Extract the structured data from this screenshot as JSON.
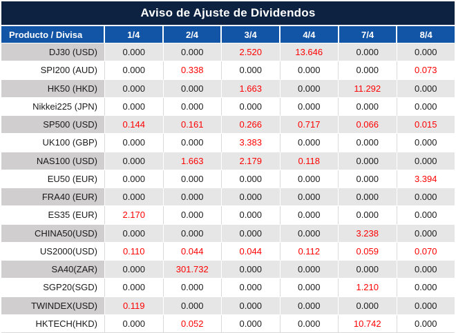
{
  "title": "Aviso de Ajuste de Dividendos",
  "columns": [
    "Producto / Divisa",
    "1/4",
    "2/4",
    "3/4",
    "4/4",
    "7/4",
    "8/4"
  ],
  "rows": [
    {
      "product": "DJ30 (USD)",
      "values": [
        "0.000",
        "0.000",
        "2.520",
        "13.646",
        "0.000",
        "0.000"
      ]
    },
    {
      "product": "SPI200 (AUD)",
      "values": [
        "0.000",
        "0.338",
        "0.000",
        "0.000",
        "0.000",
        "0.073"
      ]
    },
    {
      "product": "HK50 (HKD)",
      "values": [
        "0.000",
        "0.000",
        "1.663",
        "0.000",
        "11.292",
        "0.000"
      ]
    },
    {
      "product": "Nikkei225 (JPN)",
      "values": [
        "0.000",
        "0.000",
        "0.000",
        "0.000",
        "0.000",
        "0.000"
      ]
    },
    {
      "product": "SP500 (USD)",
      "values": [
        "0.144",
        "0.161",
        "0.266",
        "0.717",
        "0.066",
        "0.015"
      ]
    },
    {
      "product": "UK100 (GBP)",
      "values": [
        "0.000",
        "0.000",
        "3.383",
        "0.000",
        "0.000",
        "0.000"
      ]
    },
    {
      "product": "NAS100 (USD)",
      "values": [
        "0.000",
        "1.663",
        "2.179",
        "0.118",
        "0.000",
        "0.000"
      ]
    },
    {
      "product": "EU50 (EUR)",
      "values": [
        "0.000",
        "0.000",
        "0.000",
        "0.000",
        "0.000",
        "3.394"
      ]
    },
    {
      "product": "FRA40 (EUR)",
      "values": [
        "0.000",
        "0.000",
        "0.000",
        "0.000",
        "0.000",
        "0.000"
      ]
    },
    {
      "product": "ES35 (EUR)",
      "values": [
        "2.170",
        "0.000",
        "0.000",
        "0.000",
        "0.000",
        "0.000"
      ]
    },
    {
      "product": "CHINA50(USD)",
      "values": [
        "0.000",
        "0.000",
        "0.000",
        "0.000",
        "3.238",
        "0.000"
      ]
    },
    {
      "product": "US2000(USD)",
      "values": [
        "0.110",
        "0.044",
        "0.044",
        "0.112",
        "0.059",
        "0.070"
      ]
    },
    {
      "product": "SA40(ZAR)",
      "values": [
        "0.000",
        "301.732",
        "0.000",
        "0.000",
        "0.000",
        "0.000"
      ]
    },
    {
      "product": "SGP20(SGD)",
      "values": [
        "0.000",
        "0.000",
        "0.000",
        "0.000",
        "1.210",
        "0.000"
      ]
    },
    {
      "product": "TWINDEX(USD)",
      "values": [
        "0.119",
        "0.000",
        "0.000",
        "0.000",
        "0.000",
        "0.000"
      ]
    },
    {
      "product": "HKTECH(HKD)",
      "values": [
        "0.000",
        "0.052",
        "0.000",
        "0.000",
        "10.742",
        "0.000"
      ]
    }
  ],
  "colors": {
    "navy": "#0d2240",
    "header-blue": "#1254a5",
    "gray-product": "#d0cece",
    "gray-value": "#e7e6e6",
    "grid-gray": "#d9d9d9",
    "text-dark": "#1a1a1a",
    "value-red": "#fe0000"
  }
}
